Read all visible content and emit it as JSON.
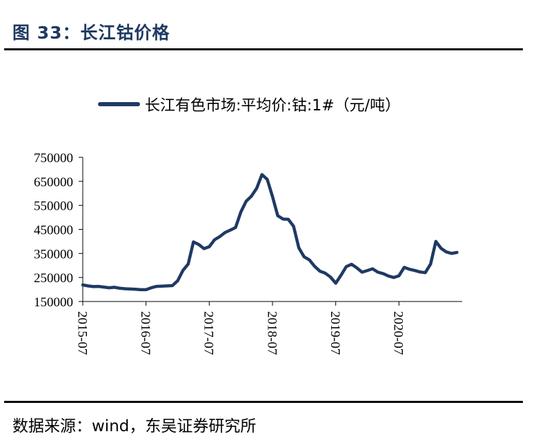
{
  "figure": {
    "title": "图 33：长江钴价格",
    "source": "数据来源：wind，东吴证券研究所"
  },
  "colors": {
    "series": "#1f3a63",
    "axis": "#000000",
    "title": "#1f3a63"
  },
  "chart_data": {
    "type": "line",
    "title": "",
    "xlabel": "",
    "ylabel": "",
    "legend_position": "top",
    "grid": false,
    "x_tick_labels": [
      "2015-07",
      "2016-07",
      "2017-07",
      "2018-07",
      "2019-07",
      "2020-07"
    ],
    "y_tick_labels": [
      "750000",
      "650000",
      "550000",
      "450000",
      "350000",
      "250000",
      "150000"
    ],
    "ylim": [
      150000,
      750000
    ],
    "xlim": [
      "2015-07",
      "2021-07"
    ],
    "series": [
      {
        "name": "长江有色市场:平均价:钴:1#（元/吨）",
        "x": [
          "2015-07",
          "2015-08",
          "2015-09",
          "2015-10",
          "2015-11",
          "2015-12",
          "2016-01",
          "2016-02",
          "2016-03",
          "2016-04",
          "2016-05",
          "2016-06",
          "2016-07",
          "2016-08",
          "2016-09",
          "2016-10",
          "2016-11",
          "2016-12",
          "2017-01",
          "2017-02",
          "2017-03",
          "2017-04",
          "2017-05",
          "2017-06",
          "2017-07",
          "2017-08",
          "2017-09",
          "2017-10",
          "2017-11",
          "2017-12",
          "2018-01",
          "2018-02",
          "2018-03",
          "2018-04",
          "2018-05",
          "2018-06",
          "2018-07",
          "2018-08",
          "2018-09",
          "2018-10",
          "2018-11",
          "2018-12",
          "2019-01",
          "2019-02",
          "2019-03",
          "2019-04",
          "2019-05",
          "2019-06",
          "2019-07",
          "2019-08",
          "2019-09",
          "2019-10",
          "2019-11",
          "2019-12",
          "2020-01",
          "2020-02",
          "2020-03",
          "2020-04",
          "2020-05",
          "2020-06",
          "2020-07",
          "2020-08",
          "2020-09",
          "2020-10",
          "2020-11",
          "2020-12",
          "2021-01",
          "2021-02",
          "2021-03",
          "2021-04",
          "2021-05",
          "2021-06"
        ],
        "values": [
          219000,
          215000,
          212000,
          213000,
          210000,
          207000,
          209000,
          205000,
          203000,
          202000,
          201000,
          199000,
          199000,
          207000,
          213000,
          214000,
          215000,
          216000,
          236000,
          279000,
          306000,
          398000,
          387000,
          370000,
          378000,
          407000,
          420000,
          437000,
          447000,
          458000,
          523000,
          567000,
          588000,
          621000,
          678000,
          658000,
          587000,
          507000,
          493000,
          492000,
          463000,
          373000,
          336000,
          323000,
          296000,
          276000,
          268000,
          252000,
          226000,
          259000,
          295000,
          305000,
          290000,
          272000,
          279000,
          286000,
          272000,
          266000,
          256000,
          250000,
          257000,
          292000,
          284000,
          279000,
          273000,
          270000,
          306000,
          400000,
          371000,
          356000,
          350000,
          354000
        ]
      }
    ]
  }
}
